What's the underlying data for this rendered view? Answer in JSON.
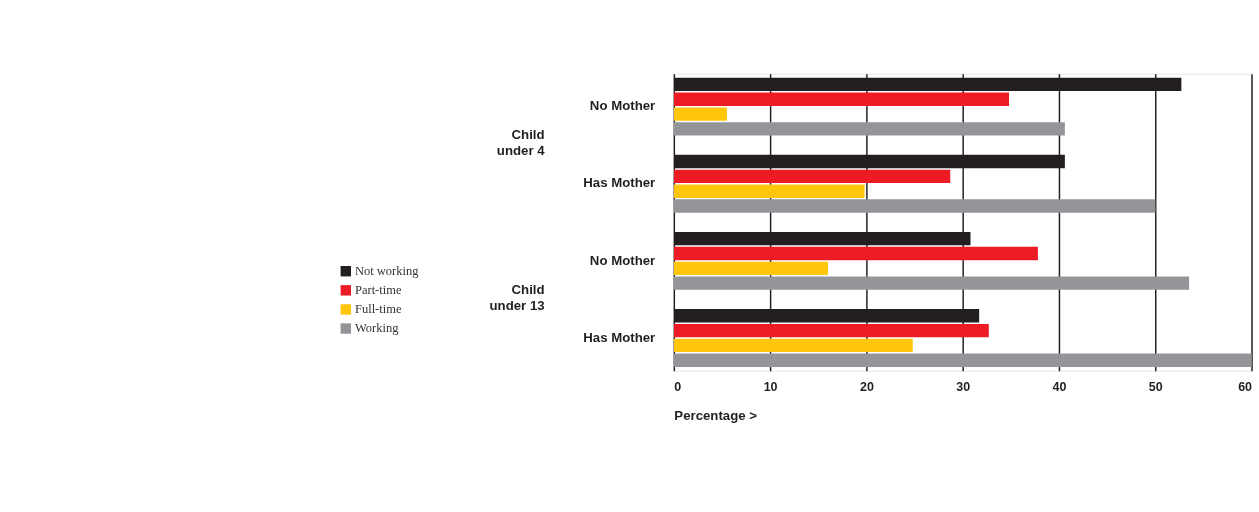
{
  "chart_data": {
    "type": "bar",
    "orientation": "horizontal",
    "xlabel": "Percentage >",
    "categories": [
      "No Mother",
      "Has Mother",
      "No Mother",
      "Has Mother"
    ],
    "series": [
      {
        "name": "Not working",
        "color": "#231f20",
        "values": [
          52.7,
          40.6,
          30.8,
          31.7
        ]
      },
      {
        "name": "Part-time",
        "color": "#ed1c24",
        "values": [
          34.8,
          28.7,
          37.8,
          32.7
        ]
      },
      {
        "name": "Full-time",
        "color": "#ffc60b",
        "values": [
          5.5,
          19.8,
          16.0,
          24.8
        ]
      },
      {
        "name": "Working",
        "color": "#939598",
        "values": [
          40.6,
          50.0,
          53.5,
          60.0
        ]
      }
    ],
    "annotations": [
      "Child under 4",
      "Child under 13"
    ],
    "xlim": [
      0,
      60
    ],
    "xticks": [
      0,
      10,
      20,
      30,
      40,
      50,
      60
    ],
    "grid": "x",
    "legend": "left"
  }
}
